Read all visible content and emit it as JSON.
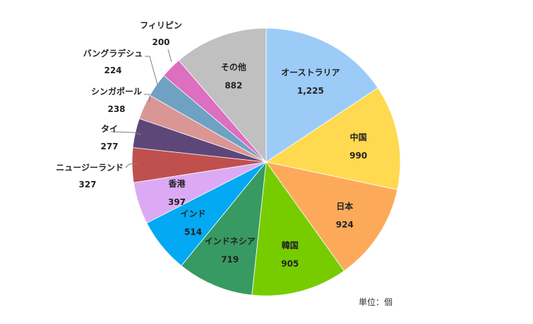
{
  "chart_data": {
    "type": "pie",
    "title": "",
    "unit_note": "単位：個",
    "slices": [
      {
        "name": "オーストラリア",
        "value": 1225,
        "value_label": "1,225",
        "color": "#9ccbf8"
      },
      {
        "name": "中国",
        "value": 990,
        "value_label": "990",
        "color": "#ffd94f"
      },
      {
        "name": "日本",
        "value": 924,
        "value_label": "924",
        "color": "#fcaa5a"
      },
      {
        "name": "韓国",
        "value": 905,
        "value_label": "905",
        "color": "#77cc00"
      },
      {
        "name": "インドネシア",
        "value": 719,
        "value_label": "719",
        "color": "#379a62"
      },
      {
        "name": "インド",
        "value": 514,
        "value_label": "514",
        "color": "#03a9f2"
      },
      {
        "name": "香港",
        "value": 397,
        "value_label": "397",
        "color": "#dcaaf5"
      },
      {
        "name": "ニュージーランド",
        "value": 327,
        "value_label": "327",
        "color": "#c0504d"
      },
      {
        "name": "タイ",
        "value": 277,
        "value_label": "277",
        "color": "#5d4779"
      },
      {
        "name": "シンガポール",
        "value": 238,
        "value_label": "238",
        "color": "#d99694"
      },
      {
        "name": "バングラデシュ",
        "value": 224,
        "value_label": "224",
        "color": "#6fa1c2"
      },
      {
        "name": "フィリピン",
        "value": 200,
        "value_label": "200",
        "color": "#dd6fc0"
      },
      {
        "name": "その他",
        "value": 882,
        "value_label": "882",
        "color": "#c0c0c0"
      }
    ]
  }
}
